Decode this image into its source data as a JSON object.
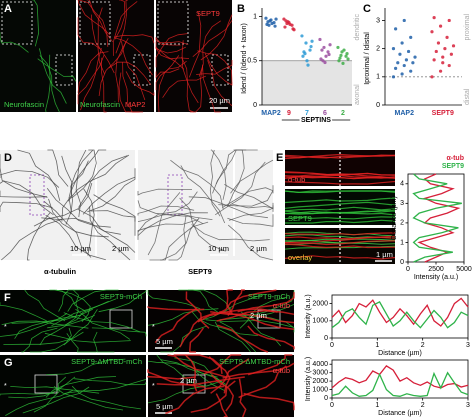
{
  "panels": {
    "A": {
      "letter": "A",
      "labels": [
        "Neurofascin",
        "Neurofascin",
        "MAP2",
        "SEPT9",
        "20 µm"
      ]
    },
    "B": {
      "letter": "B"
    },
    "C": {
      "letter": "C"
    },
    "D": {
      "letter": "D",
      "labels": [
        "α-tubulin",
        "SEPT9",
        "10 µm",
        "2 µm",
        "10 µm",
        "2 µm"
      ]
    },
    "E": {
      "letter": "E",
      "labels": [
        "α-tub",
        "SEPT9",
        "overlay",
        "1 µm"
      ]
    },
    "F": {
      "letter": "F",
      "labels": [
        "SEPT9-mCh",
        "SEPT9-mCh",
        "α-tub",
        "5 µm",
        "2 µm",
        "*",
        "*"
      ]
    },
    "G": {
      "letter": "G",
      "labels": [
        "SEPT9-ΔMTBD-mCh",
        "SEPT9-ΔMTBD-mCh",
        "α-tub",
        "5 µm",
        "2 µm",
        "*",
        "*"
      ]
    }
  },
  "chart_data": [
    {
      "type": "strip",
      "ylabel": "Idend / (Idend + Iaxon)",
      "categories": [
        "MAP2",
        "9",
        "7",
        "6",
        "2"
      ],
      "colors": [
        "#1f5fa8",
        "#d6203a",
        "#2e9bd6",
        "#9b4fa0",
        "#3fae49"
      ],
      "values": [
        [
          0.98,
          0.95,
          0.93,
          0.91,
          0.96,
          0.89,
          0.94,
          0.92,
          0.97,
          0.9
        ],
        [
          0.97,
          0.94,
          0.9,
          0.88,
          0.93,
          0.86,
          0.95,
          0.91,
          0.85,
          0.92
        ],
        [
          0.78,
          0.7,
          0.62,
          0.55,
          0.5,
          0.66,
          0.6,
          0.45,
          0.72,
          0.58
        ],
        [
          0.74,
          0.65,
          0.6,
          0.52,
          0.48,
          0.57,
          0.62,
          0.55,
          0.68,
          0.5
        ],
        [
          0.65,
          0.6,
          0.55,
          0.5,
          0.47,
          0.58,
          0.53,
          0.62,
          0.52,
          0.56
        ]
      ],
      "ylim": [
        0,
        1.05
      ],
      "yticks": [
        0,
        0.5,
        1
      ],
      "threshold": 0.5,
      "shade_below": true,
      "side_labels": [
        "dendritic",
        "axonal"
      ],
      "group_label": "SEPTINS"
    },
    {
      "type": "strip",
      "ylabel": "Iproximal / Idistal",
      "categories": [
        "MAP2",
        "SEPT9"
      ],
      "colors": [
        "#1f5fa8",
        "#d6203a"
      ],
      "values": [
        [
          1.0,
          1.1,
          1.2,
          1.3,
          1.4,
          1.5,
          1.5,
          1.6,
          1.7,
          1.8,
          1.9,
          2.0,
          2.2,
          2.4,
          2.7,
          3.0
        ],
        [
          1.0,
          1.2,
          1.4,
          1.6,
          1.7,
          1.8,
          1.9,
          2.0,
          2.1,
          2.2,
          2.4,
          2.6,
          2.8,
          3.0,
          3.1,
          1.5
        ]
      ],
      "ylim": [
        0,
        3.3
      ],
      "yticks": [
        0,
        1,
        2,
        3
      ],
      "threshold": 1,
      "shade_below": false,
      "side_labels": [
        "proximal",
        "distal"
      ]
    },
    {
      "type": "line",
      "orientation": "vertical",
      "xlabel": "Distance (µm)",
      "ylabel": "Intensity (a.u.)",
      "x": [
        0,
        0.25,
        0.5,
        0.75,
        1,
        1.25,
        1.5,
        1.75,
        2,
        2.25,
        2.5,
        2.75,
        3,
        3.25,
        3.5,
        3.75,
        4,
        4.25,
        4.5
      ],
      "series": [
        {
          "name": "α-tub",
          "color": "#d6203a",
          "values": [
            1500,
            2500,
            3500,
            2000,
            1000,
            2500,
            4000,
            3000,
            1500,
            2000,
            3500,
            4500,
            2500,
            1500,
            3000,
            4000,
            2000,
            1500,
            2500
          ]
        },
        {
          "name": "SEPT9",
          "color": "#2fb34a",
          "values": [
            500,
            1500,
            4000,
            1000,
            500,
            1000,
            3000,
            4500,
            1500,
            500,
            1000,
            2500,
            4800,
            1000,
            500,
            2000,
            3500,
            1000,
            500
          ]
        }
      ],
      "xlim": [
        0,
        4.5
      ],
      "xticks": [
        0,
        1,
        2,
        3,
        4
      ],
      "ylim": [
        0,
        5000
      ],
      "yticks": [
        0,
        2500,
        5000
      ]
    },
    {
      "type": "line",
      "xlabel": "Distance (µm)",
      "ylabel": "Intensity (a.u.)",
      "x": [
        0,
        0.15,
        0.3,
        0.45,
        0.6,
        0.75,
        0.9,
        1.05,
        1.2,
        1.35,
        1.5,
        1.65,
        1.8,
        1.95,
        2.1,
        2.25,
        2.4,
        2.55,
        2.7,
        2.85,
        3
      ],
      "series": [
        {
          "color": "#d6203a",
          "values": [
            1200,
            1600,
            900,
            1300,
            2000,
            1800,
            2200,
            1500,
            900,
            1200,
            1700,
            1300,
            800,
            1400,
            1900,
            1000,
            700,
            1200,
            2000,
            2300,
            1800
          ]
        },
        {
          "color": "#2fb34a",
          "values": [
            600,
            900,
            1500,
            1700,
            1200,
            800,
            1900,
            2100,
            1400,
            700,
            1000,
            1500,
            1000,
            600,
            1100,
            1600,
            1200,
            600,
            900,
            1500,
            1300
          ]
        }
      ],
      "xlim": [
        0,
        3
      ],
      "xticks": [
        0,
        1,
        2,
        3
      ],
      "ylim": [
        0,
        2500
      ],
      "yticks": [
        0,
        1000,
        2000
      ]
    },
    {
      "type": "line",
      "xlabel": "Distance (µm)",
      "ylabel": "Intensity (a.u.)",
      "x": [
        0,
        0.15,
        0.3,
        0.45,
        0.6,
        0.75,
        0.9,
        1.05,
        1.2,
        1.35,
        1.5,
        1.65,
        1.8,
        1.95,
        2.1,
        2.25,
        2.4,
        2.55,
        2.7,
        2.85,
        3
      ],
      "series": [
        {
          "color": "#d6203a",
          "values": [
            1200,
            1900,
            2400,
            2200,
            1800,
            2100,
            3200,
            2800,
            3800,
            3300,
            2000,
            2400,
            1800,
            1500,
            1900,
            1400,
            1200,
            1600,
            1700,
            1300,
            1500
          ]
        },
        {
          "color": "#2fb34a",
          "values": [
            300,
            500,
            1400,
            600,
            200,
            300,
            900,
            2800,
            1000,
            300,
            200,
            500,
            300,
            200,
            300,
            2900,
            1200,
            3000,
            1800,
            700,
            400
          ]
        }
      ],
      "xlim": [
        0,
        3
      ],
      "xticks": [
        0,
        1,
        2,
        3
      ],
      "ylim": [
        0,
        4500
      ],
      "yticks": [
        0,
        1000,
        2000,
        3000,
        4000
      ]
    }
  ]
}
